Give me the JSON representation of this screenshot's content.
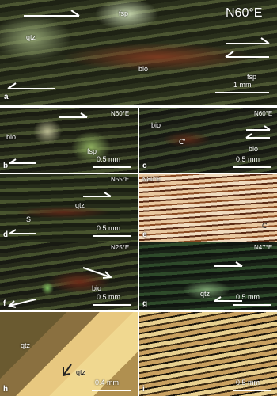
{
  "panels": [
    {
      "letter": "a",
      "orientation": "N60°E",
      "labels": [
        "fsp",
        "qtz",
        "bio",
        "fsp"
      ],
      "scale": "1 mm"
    },
    {
      "letter": "b",
      "orientation": "N60°E",
      "labels": [
        "fsp",
        "bio"
      ],
      "scale": "0.5 mm"
    },
    {
      "letter": "c",
      "orientation": "N60°E",
      "labels": [
        "bio",
        "C'",
        "bio"
      ],
      "scale": "0.5 mm"
    },
    {
      "letter": "d",
      "orientation": "N55°E",
      "labels": [
        "qtz",
        "S"
      ],
      "scale": "0.5 mm"
    },
    {
      "letter": "e",
      "orientation": "N80°E",
      "labels": [
        "C'"
      ]
    },
    {
      "letter": "f",
      "orientation": "N25°E",
      "labels": [
        "bio"
      ],
      "scale": "0.5 mm"
    },
    {
      "letter": "g",
      "orientation": "N47°E",
      "labels": [
        "qtz"
      ],
      "scale": "0.5 mm"
    },
    {
      "letter": "h",
      "labels": [
        "qtz",
        "qtz"
      ],
      "scale": "0.4 mm"
    },
    {
      "letter": "i",
      "scale": "0.5 mm"
    }
  ]
}
